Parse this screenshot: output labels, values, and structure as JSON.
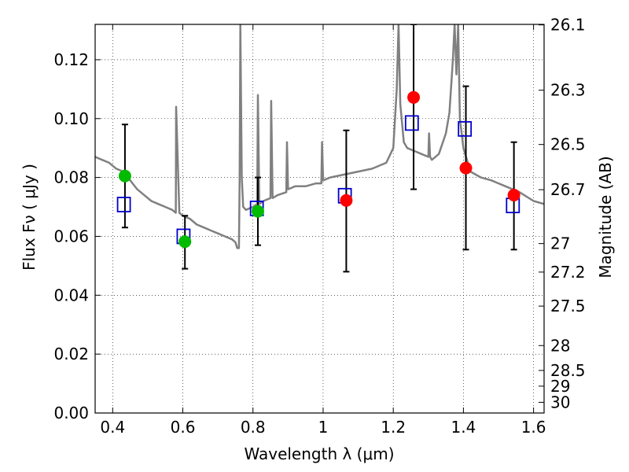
{
  "chart_data": {
    "type": "scatter",
    "title": "",
    "xlabel": "Wavelength  λ (μm)",
    "ylabel": "Flux  Fν  ( μJy )",
    "y2label": "Magnitude (AB)",
    "xlim": [
      0.35,
      1.63
    ],
    "ylim": [
      0.0,
      0.132
    ],
    "grid": true,
    "x_ticks": [
      0.4,
      0.6,
      0.8,
      1.0,
      1.2,
      1.4,
      1.6
    ],
    "x_tick_labels": [
      "0.4",
      "0.6",
      "0.8",
      "1",
      "1.2",
      "1.4",
      "1.6"
    ],
    "y_ticks": [
      0.0,
      0.02,
      0.04,
      0.06,
      0.08,
      0.1,
      0.12
    ],
    "y_tick_labels": [
      "0.00",
      "0.02",
      "0.04",
      "0.06",
      "0.08",
      "0.10",
      "0.12"
    ],
    "mag_ticks": [
      26.1,
      26.3,
      26.5,
      26.7,
      27,
      27.2,
      27.5,
      28,
      28.5,
      29,
      30
    ],
    "mag_tick_labels": [
      "26.1",
      "26.3",
      "26.5",
      "26.7",
      "27",
      "27.2",
      "27.5",
      "28",
      "28.5",
      "29",
      "30"
    ],
    "colors": {
      "model": "#808080",
      "observed_green": "#00bb00",
      "observed_red": "#ff0000",
      "model_box": "#0000cc",
      "errorbar": "#000000"
    },
    "series": [
      {
        "name": "model_spectrum",
        "kind": "line",
        "x": [
          0.35,
          0.37,
          0.39,
          0.41,
          0.43,
          0.45,
          0.47,
          0.49,
          0.51,
          0.53,
          0.55,
          0.57,
          0.58,
          0.581,
          0.59,
          0.6,
          0.62,
          0.64,
          0.66,
          0.68,
          0.7,
          0.72,
          0.74,
          0.75,
          0.755,
          0.76,
          0.762,
          0.764,
          0.768,
          0.772,
          0.78,
          0.8,
          0.812,
          0.814,
          0.818,
          0.83,
          0.85,
          0.852,
          0.856,
          0.87,
          0.895,
          0.897,
          0.9,
          0.92,
          0.95,
          0.98,
          0.995,
          0.997,
          1.0,
          1.02,
          1.06,
          1.1,
          1.14,
          1.18,
          1.2,
          1.21,
          1.215,
          1.22,
          1.23,
          1.24,
          1.26,
          1.28,
          1.3,
          1.302,
          1.305,
          1.31,
          1.33,
          1.35,
          1.36,
          1.37,
          1.375,
          1.38,
          1.385,
          1.39,
          1.4,
          1.42,
          1.45,
          1.48,
          1.5,
          1.52,
          1.56,
          1.6,
          1.63
        ],
        "y": [
          0.087,
          0.086,
          0.085,
          0.083,
          0.082,
          0.079,
          0.076,
          0.074,
          0.072,
          0.071,
          0.07,
          0.069,
          0.068,
          0.104,
          0.068,
          0.067,
          0.066,
          0.064,
          0.063,
          0.062,
          0.061,
          0.06,
          0.059,
          0.058,
          0.056,
          0.056,
          0.08,
          0.132,
          0.08,
          0.07,
          0.069,
          0.07,
          0.071,
          0.108,
          0.071,
          0.072,
          0.073,
          0.106,
          0.073,
          0.074,
          0.075,
          0.092,
          0.076,
          0.077,
          0.077,
          0.078,
          0.078,
          0.092,
          0.079,
          0.08,
          0.081,
          0.082,
          0.083,
          0.085,
          0.09,
          0.11,
          0.132,
          0.105,
          0.092,
          0.09,
          0.089,
          0.088,
          0.087,
          0.095,
          0.087,
          0.086,
          0.088,
          0.095,
          0.102,
          0.12,
          0.132,
          0.115,
          0.132,
          0.1,
          0.09,
          0.082,
          0.08,
          0.079,
          0.078,
          0.077,
          0.075,
          0.072,
          0.071
        ]
      },
      {
        "name": "observed_flux",
        "kind": "points",
        "x": [
          0.435,
          0.606,
          0.814,
          1.066,
          1.258,
          1.407,
          1.544
        ],
        "y": [
          0.0805,
          0.0582,
          0.0685,
          0.0722,
          0.1072,
          0.0832,
          0.074
        ],
        "colors": [
          "green",
          "green",
          "green",
          "red",
          "red",
          "red",
          "red"
        ]
      },
      {
        "name": "model_bandpass_flux",
        "kind": "open_squares",
        "x": [
          0.432,
          0.602,
          0.811,
          1.062,
          1.253,
          1.404,
          1.541
        ],
        "y": [
          0.0708,
          0.06,
          0.0695,
          0.0738,
          0.0985,
          0.0965,
          0.0705
        ]
      },
      {
        "name": "error_bars",
        "kind": "errorbar",
        "x": [
          0.435,
          0.606,
          0.814,
          1.066,
          1.258,
          1.407,
          1.544
        ],
        "low": [
          0.063,
          0.049,
          0.057,
          0.048,
          0.076,
          0.0555,
          0.0555
        ],
        "high": [
          0.098,
          0.067,
          0.08,
          0.096,
          0.132,
          0.111,
          0.092
        ]
      }
    ]
  }
}
